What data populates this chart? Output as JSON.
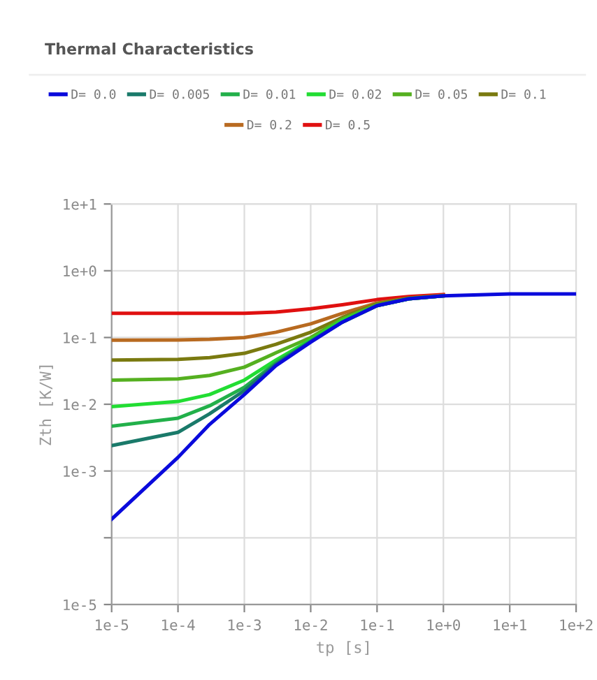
{
  "chart_data": {
    "type": "line",
    "title": "Thermal Characteristics",
    "xlabel": "tp [s]",
    "ylabel": "Zth [K/W]",
    "log": "xy",
    "grid": true,
    "legend": "top",
    "marker": "none",
    "line_style": "solid",
    "x": [
      1e-05,
      0.0001,
      0.0003,
      0.001,
      0.003,
      0.01,
      0.03,
      0.1,
      0.3,
      1,
      10,
      100
    ],
    "xlim": [
      1e-05,
      100
    ],
    "xticks": [
      {
        "value": 1e-05,
        "label": "1e-5"
      },
      {
        "value": 0.0001,
        "label": "1e-4"
      },
      {
        "value": 0.001,
        "label": "1e-3"
      },
      {
        "value": 0.01,
        "label": "1e-2"
      },
      {
        "value": 0.1,
        "label": "1e-1"
      },
      {
        "value": 1,
        "label": "1e+0"
      },
      {
        "value": 10,
        "label": "1e+1"
      },
      {
        "value": 100,
        "label": "1e+2"
      }
    ],
    "ylim": [
      1e-05,
      10
    ],
    "yticks": [
      {
        "value": 1e-05,
        "label": "1e-5"
      },
      {
        "value": 0.0001,
        "label": null
      },
      {
        "value": 0.001,
        "label": "1e-3"
      },
      {
        "value": 0.01,
        "label": "1e-2"
      },
      {
        "value": 0.1,
        "label": "1e-1"
      },
      {
        "value": 1,
        "label": "1e+0"
      },
      {
        "value": 10,
        "label": "1e+1"
      }
    ],
    "series": [
      {
        "name": "D= 0.0",
        "color": "#0a0adc",
        "values": [
          0.00019,
          0.0016,
          0.005,
          0.014,
          0.038,
          0.085,
          0.17,
          0.3,
          0.38,
          0.42,
          0.45,
          0.45
        ]
      },
      {
        "name": "D= 0.005",
        "color": "#1a7a6a",
        "values": [
          0.0024,
          0.0038,
          0.0072,
          0.016,
          0.04,
          0.087,
          0.17,
          0.3,
          0.38,
          0.42,
          null,
          null
        ]
      },
      {
        "name": "D= 0.01",
        "color": "#22b04a",
        "values": [
          0.0047,
          0.0062,
          0.0095,
          0.018,
          0.042,
          0.089,
          0.17,
          0.3,
          0.38,
          0.42,
          null,
          null
        ]
      },
      {
        "name": "D= 0.02",
        "color": "#22dd33",
        "values": [
          0.0092,
          0.011,
          0.014,
          0.023,
          0.046,
          0.092,
          0.18,
          0.3,
          0.38,
          0.42,
          null,
          null
        ]
      },
      {
        "name": "D= 0.05",
        "color": "#55b020",
        "values": [
          0.023,
          0.024,
          0.027,
          0.036,
          0.059,
          0.1,
          0.19,
          0.31,
          0.38,
          0.42,
          null,
          null
        ]
      },
      {
        "name": "D= 0.1",
        "color": "#7a7a10",
        "values": [
          0.046,
          0.047,
          0.05,
          0.058,
          0.079,
          0.12,
          0.2,
          0.32,
          0.39,
          0.42,
          null,
          null
        ]
      },
      {
        "name": "D= 0.2",
        "color": "#b86a20",
        "values": [
          0.091,
          0.092,
          0.094,
          0.1,
          0.12,
          0.16,
          0.23,
          0.33,
          0.39,
          0.43,
          null,
          null
        ]
      },
      {
        "name": "D= 0.5",
        "color": "#e01010",
        "values": [
          0.23,
          0.23,
          0.23,
          0.23,
          0.24,
          0.27,
          0.31,
          0.37,
          0.41,
          0.44,
          null,
          null
        ]
      }
    ]
  }
}
